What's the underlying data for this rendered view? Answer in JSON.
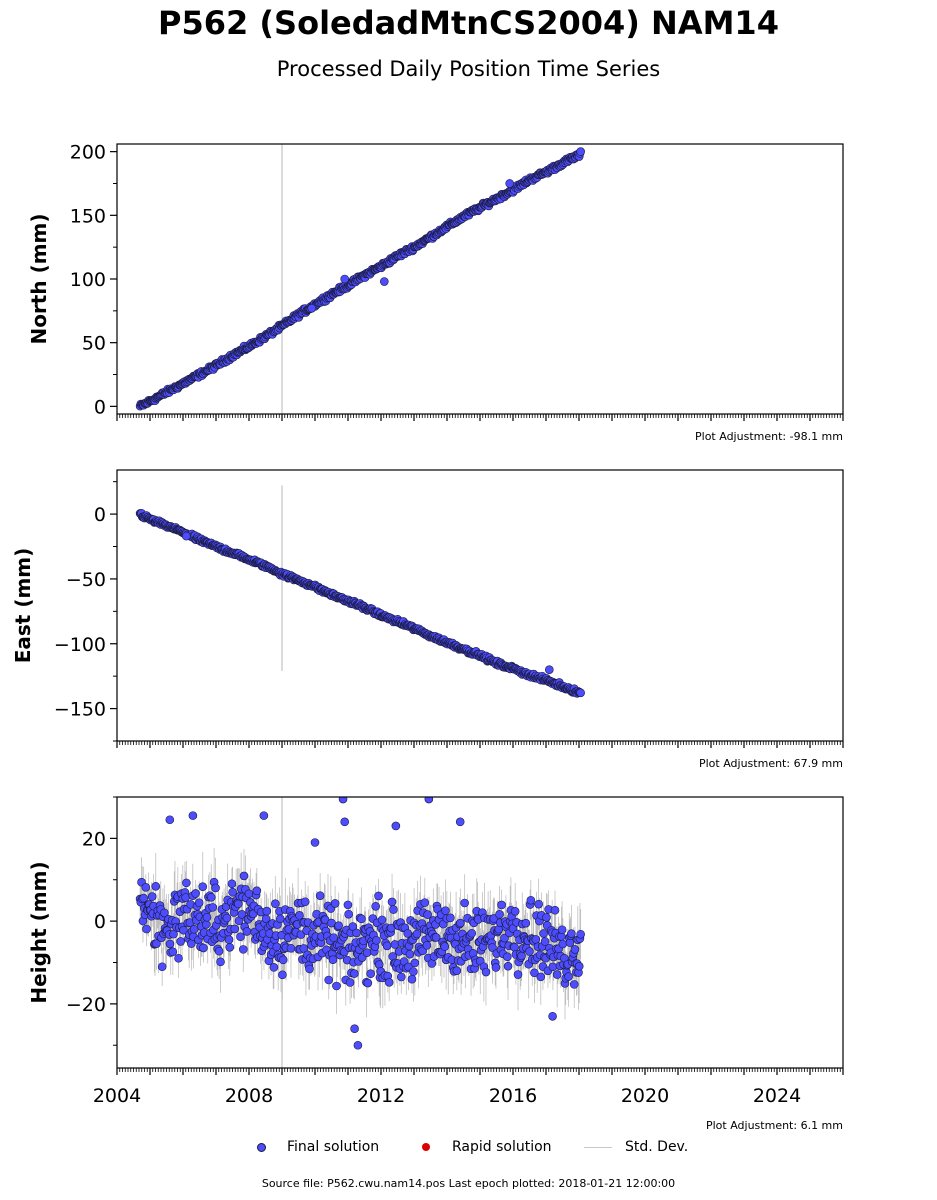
{
  "header": {
    "title": "P562 (SoledadMtnCS2004) NAM14",
    "subtitle": "Processed Daily Position Time Series"
  },
  "colors": {
    "final": "#4d4dff",
    "rapid": "#dd0000",
    "stddev": "#c8c8c8",
    "marker_edge": "#1a1a3a"
  },
  "legend": {
    "final_label": "Final solution",
    "rapid_label": "Rapid solution",
    "stddev_label": "Std. Dev."
  },
  "footer": {
    "text": "Source file: P562.cwu.nam14.pos  Last epoch plotted: 2018-01-21 12:00:00"
  },
  "chart_data": [
    {
      "type": "scatter",
      "ylabel": "North (mm)",
      "adjustment_label": "Plot Adjustment: -98.1 mm",
      "xlim": [
        2004.0,
        2026.0
      ],
      "ylim": [
        -6,
        206
      ],
      "yticks": [
        0,
        50,
        100,
        150,
        200
      ],
      "ytick_labels": [
        "0",
        "50",
        "100",
        "150",
        "200"
      ],
      "series": [
        {
          "name": "Final solution",
          "x": [
            2004.7,
            2005.0,
            2005.5,
            2006.0,
            2006.5,
            2007.0,
            2007.5,
            2008.0,
            2008.5,
            2009.0,
            2009.5,
            2010.0,
            2010.5,
            2011.0,
            2011.5,
            2012.0,
            2012.5,
            2013.0,
            2013.5,
            2014.0,
            2014.5,
            2015.0,
            2015.5,
            2016.0,
            2016.5,
            2017.0,
            2017.5,
            2018.05
          ],
          "y": [
            0,
            4,
            11,
            18,
            25,
            32,
            40,
            47,
            55,
            63,
            72,
            80,
            88,
            95,
            103,
            110,
            118,
            125,
            133,
            141,
            149,
            156,
            163,
            170,
            178,
            184,
            191,
            198
          ]
        }
      ],
      "outliers": [
        {
          "x": 2010.9,
          "y": 100
        },
        {
          "x": 2015.9,
          "y": 175
        },
        {
          "x": 2009.9,
          "y": 77
        },
        {
          "x": 2012.1,
          "y": 98
        }
      ],
      "spike": {
        "x": 2009.0,
        "ymin": -6,
        "ymax": 206
      },
      "noise": 1.6
    },
    {
      "type": "scatter",
      "ylabel": "East (mm)",
      "adjustment_label": "Plot Adjustment: 67.9 mm",
      "xlim": [
        2004.0,
        2026.0
      ],
      "ylim": [
        -175,
        34
      ],
      "yticks": [
        -150,
        -100,
        -50,
        0
      ],
      "ytick_labels": [
        "−150",
        "−100",
        "−50",
        "0"
      ],
      "series": [
        {
          "name": "Final solution",
          "x": [
            2004.7,
            2005.0,
            2005.5,
            2006.0,
            2006.5,
            2007.0,
            2007.5,
            2008.0,
            2008.5,
            2009.0,
            2009.5,
            2010.0,
            2010.5,
            2011.0,
            2011.5,
            2012.0,
            2012.5,
            2013.0,
            2013.5,
            2014.0,
            2014.5,
            2015.0,
            2015.5,
            2016.0,
            2016.5,
            2017.0,
            2017.5,
            2018.05
          ],
          "y": [
            0,
            -4,
            -9,
            -14,
            -20,
            -25,
            -30,
            -35,
            -40,
            -46,
            -51,
            -56,
            -62,
            -67,
            -72,
            -78,
            -83,
            -88,
            -94,
            -99,
            -104,
            -109,
            -115,
            -119,
            -124,
            -128,
            -133,
            -138
          ]
        }
      ],
      "outliers": [
        {
          "x": 2017.1,
          "y": -120
        },
        {
          "x": 2006.1,
          "y": -17
        }
      ],
      "spike": {
        "x": 2009.0,
        "ymin": -121,
        "ymax": 22
      },
      "noise": 1.4
    },
    {
      "type": "scatter",
      "ylabel": "Height (mm)",
      "adjustment_label": "Plot Adjustment: 6.1 mm",
      "xlim": [
        2004.0,
        2026.0
      ],
      "ylim": [
        -35.5,
        30
      ],
      "yticks": [
        -20,
        0,
        20
      ],
      "ytick_labels": [
        "−20",
        "0",
        "20"
      ],
      "xticks": [
        2004,
        2008,
        2012,
        2016,
        2020,
        2024
      ],
      "xtick_labels": [
        "2004",
        "2008",
        "2012",
        "2016",
        "2020",
        "2024"
      ],
      "series": [
        {
          "name": "Final solution",
          "x": [
            2004.7,
            2005.0,
            2005.5,
            2006.0,
            2006.5,
            2007.0,
            2007.5,
            2008.0,
            2008.5,
            2009.0,
            2009.5,
            2010.0,
            2010.5,
            2011.0,
            2011.5,
            2012.0,
            2012.5,
            2013.0,
            2013.5,
            2014.0,
            2014.5,
            2015.0,
            2015.5,
            2016.0,
            2016.5,
            2017.0,
            2017.5,
            2018.05
          ],
          "y": [
            6,
            2,
            -2,
            2,
            0,
            -1,
            2,
            3,
            -2,
            -3,
            -2,
            -4,
            -5,
            -8,
            -5,
            -4,
            -6,
            -5,
            -4,
            -3,
            -5,
            -6,
            -4,
            -1,
            -3,
            -5,
            -8,
            -6
          ]
        }
      ],
      "outliers": [
        {
          "x": 2010.85,
          "y": 29.5
        },
        {
          "x": 2013.45,
          "y": 29.5
        },
        {
          "x": 2010.9,
          "y": 24
        },
        {
          "x": 2012.45,
          "y": 23
        },
        {
          "x": 2014.4,
          "y": 24
        },
        {
          "x": 2005.6,
          "y": 24.5
        },
        {
          "x": 2006.3,
          "y": 25.5
        },
        {
          "x": 2008.45,
          "y": 25.5
        },
        {
          "x": 2011.3,
          "y": -30
        },
        {
          "x": 2011.2,
          "y": -26
        },
        {
          "x": 2010.0,
          "y": 19
        },
        {
          "x": 2017.2,
          "y": -23
        }
      ],
      "spike": {
        "x": 2009.0,
        "ymin": -35.5,
        "ymax": 30
      },
      "noise": 7.5
    }
  ]
}
